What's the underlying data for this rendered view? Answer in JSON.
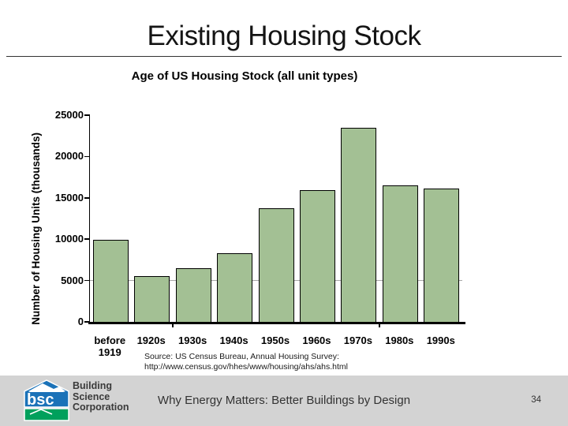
{
  "slide": {
    "title": "Existing Housing Stock",
    "page_number": "34"
  },
  "chart_data": {
    "type": "bar",
    "title": "Age of US Housing Stock (all unit types)",
    "ylabel": "Number of Housing Units (thousands)",
    "xlabel": "",
    "categories": [
      "before 1919",
      "1920s",
      "1930s",
      "1940s",
      "1950s",
      "1960s",
      "1970s",
      "1980s",
      "1990s"
    ],
    "values": [
      9900,
      5500,
      6500,
      8300,
      13700,
      15900,
      23500,
      16500,
      16100
    ],
    "ylim": [
      0,
      25000
    ],
    "yticks": [
      0,
      5000,
      10000,
      15000,
      20000,
      25000
    ],
    "grid": "single horizontal gridline at 5000",
    "gridline_at": 5000,
    "legend": "none",
    "bar_color": "#A3C094",
    "bar_border_color": "#000000",
    "source_line1": "Source: US Census Bureau, Annual Housing Survey:",
    "source_line2": "http://www.census.gov/hhes/www/housing/ahs/ahs.html"
  },
  "footer": {
    "text": "Why Energy Matters: Better Buildings by Design",
    "logo": {
      "abbr": "bsc",
      "line1": "Building",
      "line2": "Science",
      "line3": "Corporation",
      "blue": "#1B72B8",
      "green": "#00A05C"
    }
  }
}
